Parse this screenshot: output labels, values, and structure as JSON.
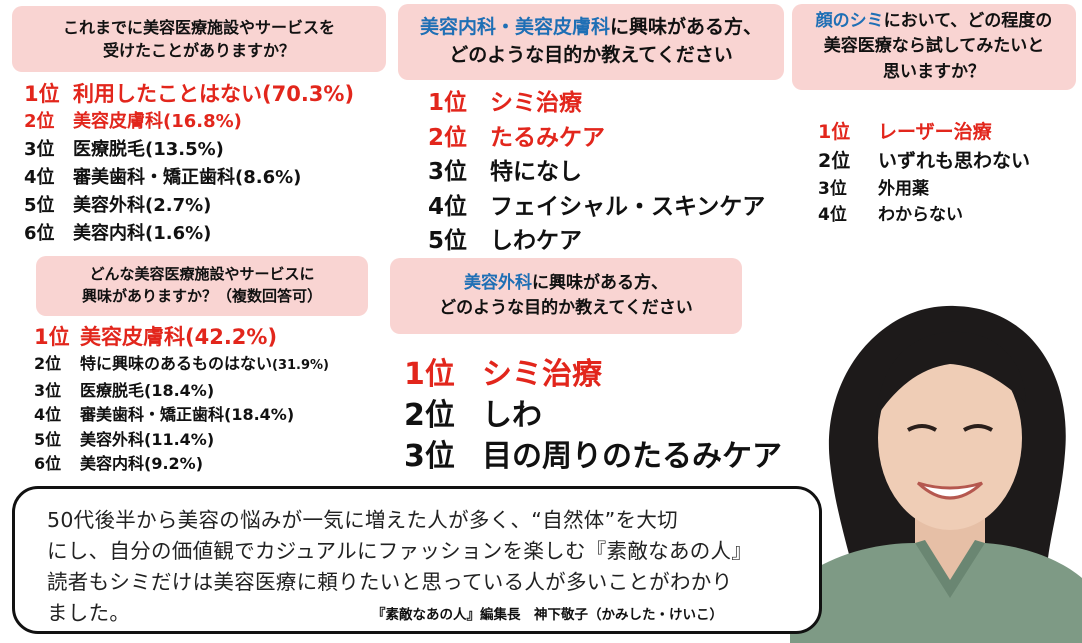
{
  "q1": {
    "line1": "これまでに美容医療施設やサービスを",
    "line2": "受けたことがありますか？",
    "items": [
      {
        "rank": "1位",
        "text": "利用したことはない",
        "pct": "(70.3%)"
      },
      {
        "rank": "2位",
        "text": "美容皮膚科",
        "pct": "(16.8%)"
      },
      {
        "rank": "3位",
        "text": "医療脱毛",
        "pct": "(13.5%)"
      },
      {
        "rank": "4位",
        "text": "審美歯科・矯正歯科",
        "pct": "(8.6%)"
      },
      {
        "rank": "5位",
        "text": "美容外科",
        "pct": "(2.7%)"
      },
      {
        "rank": "6位",
        "text": "美容内科",
        "pct": "(1.6%)"
      }
    ]
  },
  "q2": {
    "line1": "どんな美容医療施設やサービスに",
    "line2": "興味がありますか？（複数回答可）",
    "items": [
      {
        "rank": "1位",
        "text": "美容皮膚科",
        "pct": "(42.2%)"
      },
      {
        "rank": "2位",
        "text": "特に興味のあるものはない",
        "pct": "(31.9%)"
      },
      {
        "rank": "3位",
        "text": "医療脱毛",
        "pct": "(18.4%)"
      },
      {
        "rank": "4位",
        "text": "審美歯科・矯正歯科",
        "pct": "(18.4%)"
      },
      {
        "rank": "5位",
        "text": "美容外科",
        "pct": "(11.4%)"
      },
      {
        "rank": "6位",
        "text": "美容内科",
        "pct": "(9.2%)"
      }
    ]
  },
  "q3": {
    "hl": "美容内科・美容皮膚科",
    "line1_rest": "に興味がある方、",
    "line2": "どのような目的か教えてください",
    "items": [
      {
        "rank": "1位",
        "text": "シミ治療"
      },
      {
        "rank": "2位",
        "text": "たるみケア"
      },
      {
        "rank": "3位",
        "text": "特になし"
      },
      {
        "rank": "4位",
        "text": "フェイシャル・スキンケア"
      },
      {
        "rank": "5位",
        "text": "しわケア"
      }
    ]
  },
  "q4": {
    "hl": "美容外科",
    "line1_rest": "に興味がある方、",
    "line2": "どのような目的か教えてください",
    "items": [
      {
        "rank": "1位",
        "text": "シミ治療"
      },
      {
        "rank": "2位",
        "text": "しわ"
      },
      {
        "rank": "3位",
        "text": "目の周りのたるみケア"
      }
    ]
  },
  "q5": {
    "hl": "顔のシミ",
    "line1_rest": "において、どの程度の",
    "line2": "美容医療なら試してみたいと",
    "line3": "思いますか？",
    "items": [
      {
        "rank": "1位",
        "text": "レーザー治療"
      },
      {
        "rank": "2位",
        "text": "いずれも思わない"
      },
      {
        "rank": "3位",
        "text": "外用薬"
      },
      {
        "rank": "4位",
        "text": "わからない"
      }
    ]
  },
  "comment": {
    "line1": "50代後半から美容の悩みが一気に増えた人が多く、“自然体”を大切",
    "line2": "にし、自分の価値観でカジュアルにファッションを楽しむ『素敵なあの人』",
    "line3": "読者もシミだけは美容医療に頼りたいと思っている人が多いことがわかり",
    "line4": "ました。",
    "credit": "『素敵なあの人』編集長　神下敬子（かみした・けいこ）"
  },
  "colors": {
    "question_bg": "#f9d4d2",
    "highlight_blue": "#1f6fb5",
    "rank_red": "#e2261c"
  },
  "photo": {
    "icon": "portrait-photo-icon"
  }
}
